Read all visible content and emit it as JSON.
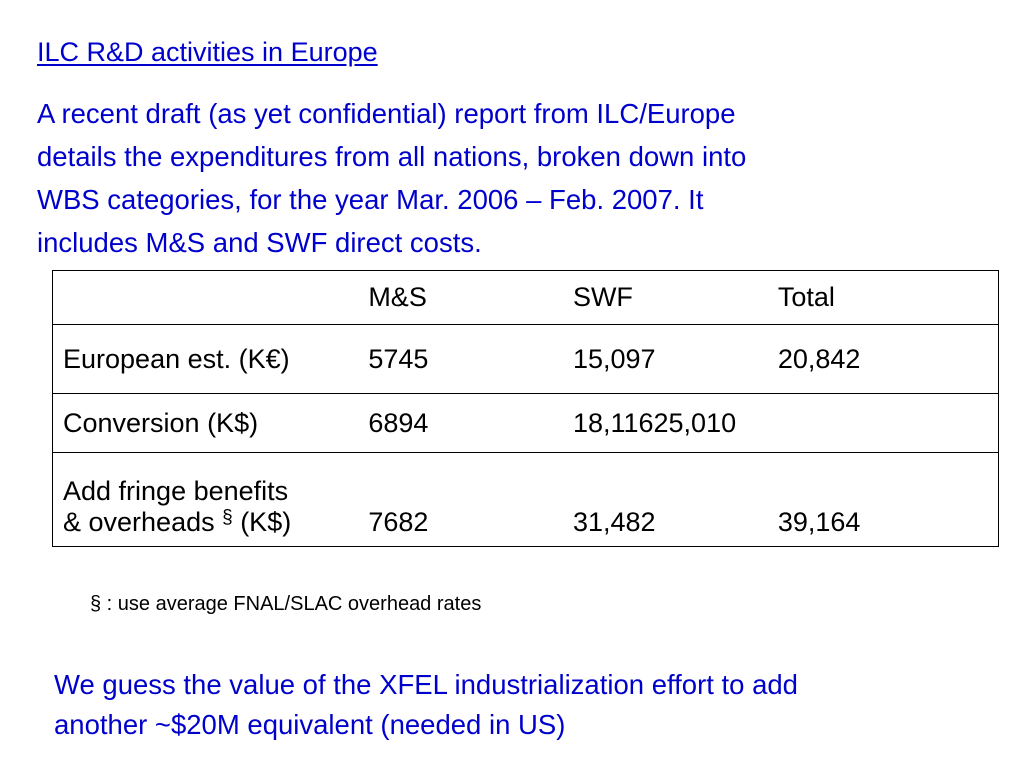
{
  "slide": {
    "title": "ILC R&D activities in Europe",
    "intro_lines": [
      "A recent draft (as yet confidential) report from ILC/Europe",
      "details the expenditures from all nations, broken down into",
      "WBS categories, for the year Mar. 2006 – Feb. 2007.  It",
      "includes M&S and SWF direct costs."
    ],
    "table": {
      "headers": [
        "",
        "M&S",
        "SWF",
        "Total"
      ],
      "rows": [
        {
          "label": "European est. (K€)",
          "ms": "5745",
          "swf": "15,097",
          "total": "20,842"
        },
        {
          "label": "Conversion (K$)",
          "ms": "6894",
          "swf": "18,11625,010",
          "total": ""
        },
        {
          "label_line1": "Add fringe benefits",
          "label_line2_pre": "& overheads ",
          "label_mark": "§",
          "label_line2_post": " (K$)",
          "ms": "7682",
          "swf": "31,482",
          "total": "39,164"
        }
      ]
    },
    "footnote": "§ : use average FNAL/SLAC overhead rates",
    "closing_lines": [
      "We guess the value of the XFEL industrialization effort to add",
      "another ~$20M equivalent (needed in US)"
    ],
    "colors": {
      "text_blue": "#0000cc",
      "table_text": "#000000",
      "background": "#ffffff"
    }
  }
}
